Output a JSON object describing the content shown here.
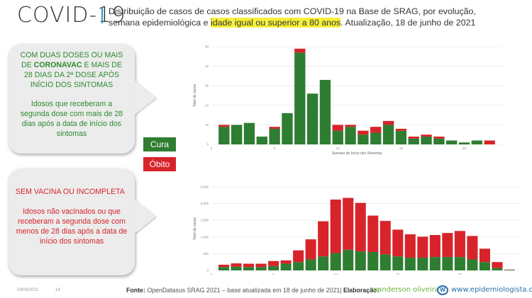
{
  "header": {
    "brand": "COVID-19",
    "line1": "Distribuição de casos de casos classificados com COVID-19 na Base de SRAG, por evolução,",
    "line2_pre": "semana epidemiológica e ",
    "line2_highlight": "idade igual ou superior a 80 anos",
    "line2_post": ". Atualização, 18 de junho de 2021"
  },
  "panel_top": {
    "title_a": "COM DUAS DOSES OU MAIS DE ",
    "title_bold": "CORONAVAC",
    "title_b": " E MAIS DE 28 DIAS DA 2ª DOSE APÓS INÍCIO DOS SINTOMAS",
    "description": "Idosos que receberam a segunda dose com mais de 28 dias após a data de início dos sintomas"
  },
  "panel_bottom": {
    "title": "SEM VACINA OU INCOMPLETA",
    "description": "Idosos não vacinados ou que receberam a segunda dose com menos de 28 dias após a data de início dos sintomas"
  },
  "legend": {
    "cura_label": "Cura",
    "obito_label": "Óbito",
    "cura_color": "#2e7d32",
    "obito_color": "#d6242a"
  },
  "chart_data": [
    {
      "type": "bar",
      "stacked": true,
      "xlabel": "Semana de Início dos Sintomas",
      "ylabel": "Total de casos",
      "xticks": [
        0,
        5,
        10,
        15,
        20
      ],
      "yticks": [
        0,
        10,
        20,
        30,
        40,
        50
      ],
      "ylim": [
        0,
        50
      ],
      "x": [
        1,
        2,
        3,
        4,
        5,
        6,
        7,
        8,
        9,
        10,
        11,
        12,
        13,
        14,
        15,
        16,
        17,
        18,
        19,
        20,
        21,
        22
      ],
      "series": [
        {
          "name": "Cura",
          "values": [
            9,
            10,
            11,
            4,
            8,
            16,
            47,
            26,
            33,
            7,
            9,
            5,
            6,
            10,
            7,
            3,
            4,
            3,
            2,
            1,
            2,
            0
          ]
        },
        {
          "name": "Óbito",
          "values": [
            1,
            0,
            0,
            0,
            1,
            0,
            2,
            0,
            0,
            3,
            1,
            2,
            3,
            2,
            1,
            1,
            1,
            1,
            0,
            0,
            0,
            2
          ]
        }
      ]
    },
    {
      "type": "bar",
      "stacked": true,
      "xlabel": "Semana de Início dos Sintomas",
      "ylabel": "Total de casos",
      "xticks": [
        0,
        5,
        10,
        15,
        20
      ],
      "yticks": [
        0,
        500,
        1000,
        1500,
        2000,
        2500
      ],
      "yticklabels": [
        "0",
        "500",
        "1,000",
        "1,500",
        "2,000",
        "2,500"
      ],
      "ylim": [
        0,
        2500
      ],
      "x": [
        1,
        2,
        3,
        4,
        5,
        6,
        7,
        8,
        9,
        10,
        11,
        12,
        13,
        14,
        15,
        16,
        17,
        18,
        19,
        20,
        21,
        22,
        23,
        24
      ],
      "series": [
        {
          "name": "Cura",
          "values": [
            100,
            110,
            100,
            100,
            130,
            200,
            250,
            330,
            420,
            520,
            620,
            570,
            550,
            480,
            420,
            380,
            380,
            400,
            400,
            400,
            330,
            250,
            70,
            15
          ]
        },
        {
          "name": "Óbito",
          "values": [
            70,
            100,
            100,
            100,
            150,
            100,
            350,
            600,
            1050,
            1600,
            1550,
            1450,
            1090,
            1000,
            800,
            700,
            630,
            660,
            720,
            780,
            700,
            400,
            180,
            10
          ]
        }
      ]
    }
  ],
  "footer": {
    "date": "19/06/2021",
    "page": "14",
    "source_label": "Fonte:",
    "source_text": " OpenDatasus SRAG 2021 – base atualizada em 18 de junho de 2021| ",
    "credit_label": "Elaboração:",
    "author": "wanderson oliveira",
    "site": "www.epidemiologista.org"
  }
}
